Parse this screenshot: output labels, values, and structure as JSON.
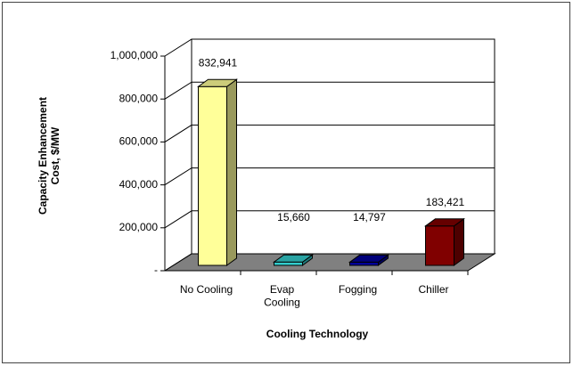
{
  "chart_data": {
    "type": "bar3d",
    "x_label": "Cooling Technology",
    "y_label": "Capacity Enhancement\nCost, $/MW",
    "categories": [
      "No Cooling",
      "Evap\nCooling",
      "Fogging",
      "Chiller"
    ],
    "values": [
      832941,
      15660,
      14797,
      183421
    ],
    "value_labels": [
      "832,941",
      "15,660",
      "14,797",
      "183,421"
    ],
    "colors": [
      "#ffff99",
      "#33cccc",
      "#000099",
      "#800000"
    ],
    "ylim": [
      0,
      1000000
    ],
    "yticks": [
      {
        "value": 0,
        "label": "-"
      },
      {
        "value": 200000,
        "label": "200,000"
      },
      {
        "value": 400000,
        "label": "400,000"
      },
      {
        "value": 600000,
        "label": "600,000"
      },
      {
        "value": 800000,
        "label": "800,000"
      },
      {
        "value": 1000000,
        "label": "1,000,000"
      }
    ],
    "grid": true
  }
}
